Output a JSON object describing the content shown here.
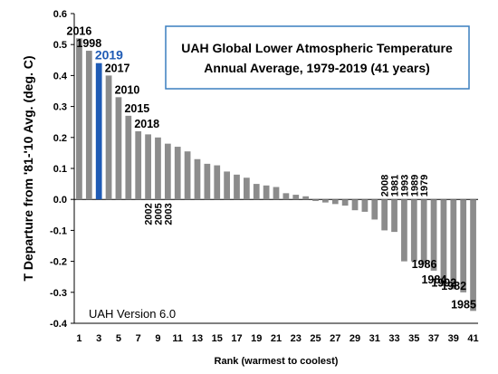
{
  "chart_data": {
    "type": "bar",
    "title_lines": [
      "UAH Global Lower Atmospheric Temperature",
      "Annual Average, 1979-2019 (41 years)"
    ],
    "xlabel": "Rank (warmest to coolest)",
    "ylabel": "T Departure from '81-'10 Avg. (deg. C)",
    "annotation": "UAH Version 6.0",
    "ylim": [
      -0.4,
      0.6
    ],
    "ytick_labels": [
      "0.6",
      "0.5",
      "0.4",
      "0.3",
      "0.2",
      "0.1",
      "0.0",
      "-0.1",
      "-0.2",
      "-0.3",
      "-0.4"
    ],
    "xtick_labels": [
      "1",
      "3",
      "5",
      "7",
      "9",
      "11",
      "13",
      "15",
      "17",
      "19",
      "21",
      "23",
      "25",
      "27",
      "29",
      "31",
      "33",
      "35",
      "37",
      "39",
      "41"
    ],
    "grid": false,
    "bar_color": "#8c8c8c",
    "highlight_color": "#1f5bb5",
    "highlight_rank": 3,
    "ranks": [
      1,
      2,
      3,
      4,
      5,
      6,
      7,
      8,
      9,
      10,
      11,
      12,
      13,
      14,
      15,
      16,
      17,
      18,
      19,
      20,
      21,
      22,
      23,
      24,
      25,
      26,
      27,
      28,
      29,
      30,
      31,
      32,
      33,
      34,
      35,
      36,
      37,
      38,
      39,
      40,
      41
    ],
    "values": [
      0.52,
      0.48,
      0.44,
      0.4,
      0.33,
      0.27,
      0.22,
      0.21,
      0.2,
      0.18,
      0.17,
      0.155,
      0.13,
      0.115,
      0.11,
      0.09,
      0.08,
      0.07,
      0.05,
      0.045,
      0.04,
      0.02,
      0.015,
      0.01,
      -0.005,
      -0.01,
      -0.015,
      -0.02,
      -0.035,
      -0.04,
      -0.065,
      -0.1,
      -0.105,
      -0.2,
      -0.2,
      -0.21,
      -0.23,
      -0.28,
      -0.29,
      -0.3,
      -0.36
    ],
    "year_labels_horizontal": [
      {
        "rank": 1,
        "text": "2016"
      },
      {
        "rank": 2,
        "text": "1998"
      },
      {
        "rank": 3,
        "text": "2019"
      },
      {
        "rank": 4,
        "text": "2017"
      },
      {
        "rank": 5,
        "text": "2010"
      },
      {
        "rank": 6,
        "text": "2015"
      },
      {
        "rank": 7,
        "text": "2018"
      },
      {
        "rank": 37,
        "text": "1986"
      },
      {
        "rank": 38,
        "text": "1984"
      },
      {
        "rank": 39,
        "text": "1992"
      },
      {
        "rank": 40,
        "text": "1982"
      },
      {
        "rank": 41,
        "text": "1985"
      }
    ],
    "year_labels_vertical": [
      {
        "rank": 8,
        "text": "2002"
      },
      {
        "rank": 9,
        "text": "2005"
      },
      {
        "rank": 10,
        "text": "2003"
      },
      {
        "rank": 32,
        "text": "2008"
      },
      {
        "rank": 33,
        "text": "1981"
      },
      {
        "rank": 34,
        "text": "1993"
      },
      {
        "rank": 35,
        "text": "1989"
      },
      {
        "rank": 36,
        "text": "1979"
      }
    ]
  }
}
